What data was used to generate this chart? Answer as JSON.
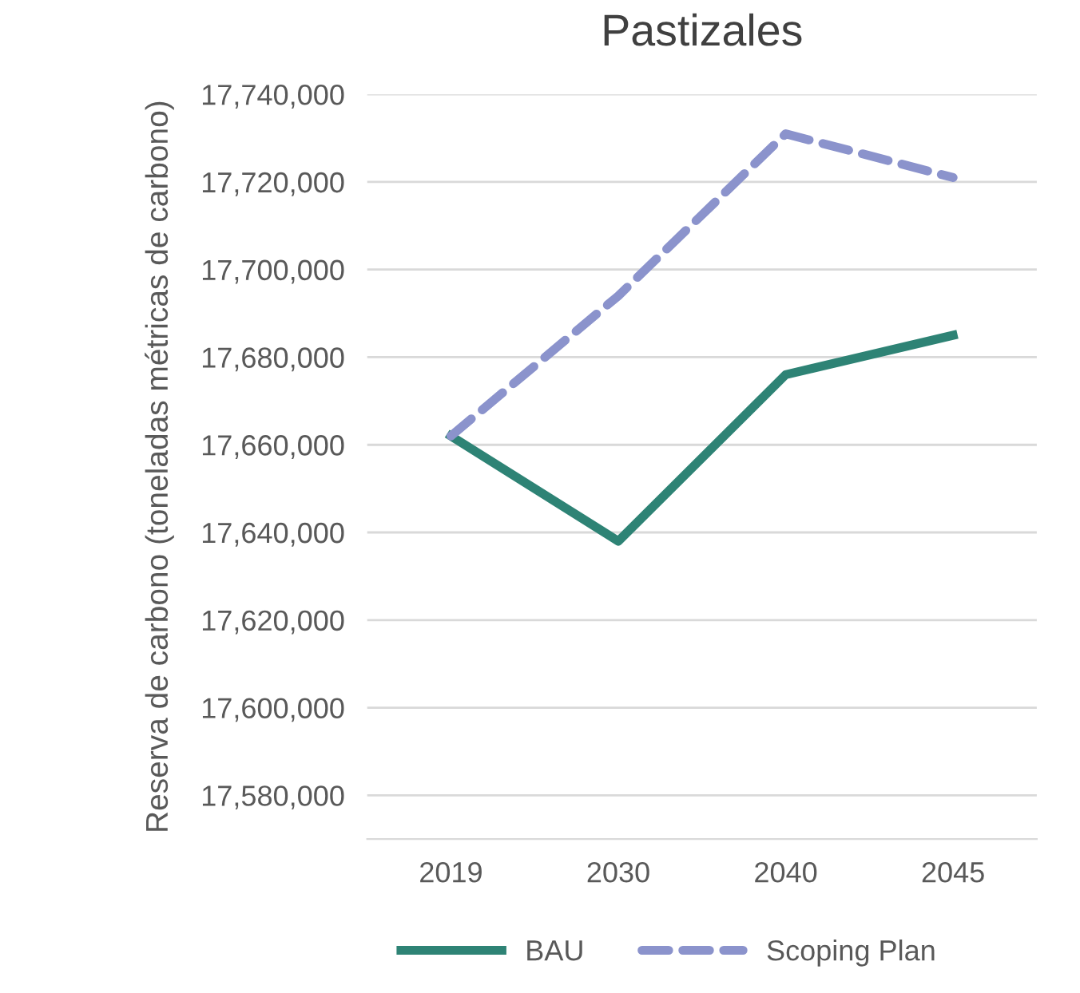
{
  "chart_data": {
    "type": "line",
    "title": "Pastizales",
    "ylabel": "Reserva de carbono (toneladas métricas de carbono)",
    "categories": [
      "2019",
      "2030",
      "2040",
      "2045"
    ],
    "series": [
      {
        "name": "BAU",
        "color": "#2e8375",
        "line_style": "solid",
        "values": [
          17662000,
          17638000,
          17676000,
          17685000
        ]
      },
      {
        "name": "Scoping Plan",
        "color": "#8b93cc",
        "line_style": "dashed",
        "values": [
          17662000,
          17694000,
          17731000,
          17721000
        ]
      }
    ],
    "ylim": [
      17570000,
      17740000
    ],
    "yticks": [
      {
        "value": 17580000,
        "label": "17,580,000"
      },
      {
        "value": 17600000,
        "label": "17,600,000"
      },
      {
        "value": 17620000,
        "label": "17,620,000"
      },
      {
        "value": 17640000,
        "label": "17,640,000"
      },
      {
        "value": 17660000,
        "label": "17,660,000"
      },
      {
        "value": 17680000,
        "label": "17,680,000"
      },
      {
        "value": 17700000,
        "label": "17,700,000"
      },
      {
        "value": 17720000,
        "label": "17,720,000"
      },
      {
        "value": 17740000,
        "label": "17,740,000"
      }
    ],
    "grid": "y",
    "legend": "bottom",
    "marker": "none"
  }
}
